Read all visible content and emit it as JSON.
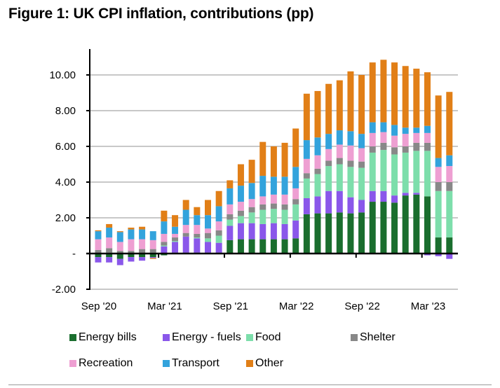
{
  "chart_data": {
    "type": "bar",
    "stacked": true,
    "title": "Figure 1: UK CPI inflation, contributions (pp)",
    "xlabel": "",
    "ylabel": "",
    "ylim": [
      -2,
      10
    ],
    "yticks": [
      {
        "value": 10,
        "label": "10.00"
      },
      {
        "value": 8,
        "label": "8.00"
      },
      {
        "value": 6,
        "label": "6.00"
      },
      {
        "value": 4,
        "label": "4.00"
      },
      {
        "value": 2,
        "label": "2.00"
      },
      {
        "value": 0,
        "label": "-"
      },
      {
        "value": -2,
        "label": "-2.00"
      }
    ],
    "grid": true,
    "legend_position": "bottom",
    "categories": [
      "Sep 2020",
      "Oct 2020",
      "Nov 2020",
      "Dec 2020",
      "Jan 2021",
      "Feb 2021",
      "Mar 2021",
      "Apr 2021",
      "May 2021",
      "Jun 2021",
      "Jul 2021",
      "Aug 2021",
      "Sep 2021",
      "Oct 2021",
      "Nov 2021",
      "Dec 2021",
      "Jan 2022",
      "Feb 2022",
      "Mar 2022",
      "Apr 2022",
      "May 2022",
      "Jun 2022",
      "Jul 2022",
      "Aug 2022",
      "Sep 2022",
      "Oct 2022",
      "Nov 2022",
      "Dec 2022",
      "Jan 2023",
      "Feb 2023",
      "Mar 2023",
      "Apr 2023",
      "May 2023"
    ],
    "xtick_labels": [
      {
        "index": 0,
        "label": "Sep '20"
      },
      {
        "index": 6,
        "label": "Mar '21"
      },
      {
        "index": 12,
        "label": "Sep '21"
      },
      {
        "index": 18,
        "label": "Mar '22"
      },
      {
        "index": 24,
        "label": "Sep '22"
      },
      {
        "index": 30,
        "label": "Mar '23"
      }
    ],
    "series": [
      {
        "name": "Energy bills",
        "color": "#1a6e2e",
        "values": [
          -0.2,
          -0.2,
          -0.3,
          -0.2,
          -0.2,
          -0.2,
          -0.1,
          0.05,
          0.05,
          0.05,
          0.05,
          0.05,
          0.75,
          0.8,
          0.8,
          0.8,
          0.8,
          0.8,
          0.85,
          2.2,
          2.25,
          2.25,
          2.3,
          2.25,
          2.3,
          2.9,
          2.9,
          2.85,
          3.25,
          3.3,
          3.2,
          0.9,
          0.9
        ]
      },
      {
        "name": "Energy - fuels",
        "color": "#8a57ea",
        "values": [
          -0.3,
          -0.3,
          -0.35,
          -0.25,
          -0.2,
          -0.05,
          0.4,
          0.6,
          0.9,
          0.8,
          0.6,
          0.55,
          0.8,
          0.9,
          0.9,
          0.85,
          0.9,
          0.85,
          1.0,
          0.9,
          0.95,
          1.25,
          1.2,
          0.9,
          0.7,
          0.6,
          0.6,
          0.4,
          0.15,
          0.1,
          -0.1,
          -0.15,
          -0.3
        ]
      },
      {
        "name": "Food",
        "color": "#7ddeab",
        "values": [
          0.0,
          0.05,
          0.0,
          0.0,
          0.0,
          0.05,
          0.05,
          0.05,
          0.0,
          0.05,
          0.2,
          0.4,
          0.35,
          0.4,
          0.6,
          0.8,
          0.8,
          0.8,
          0.9,
          1.1,
          1.25,
          1.4,
          1.5,
          1.7,
          1.8,
          2.15,
          2.3,
          2.3,
          2.25,
          2.35,
          2.55,
          2.6,
          2.6
        ]
      },
      {
        "name": "Shelter",
        "color": "#888888",
        "values": [
          0.2,
          0.25,
          0.15,
          0.15,
          0.25,
          0.2,
          0.2,
          0.2,
          0.2,
          0.2,
          0.3,
          0.3,
          0.3,
          0.3,
          0.3,
          0.3,
          0.3,
          0.3,
          0.3,
          0.3,
          0.3,
          0.3,
          0.35,
          0.35,
          0.35,
          0.35,
          0.4,
          0.4,
          0.35,
          0.45,
          0.45,
          0.5,
          0.5
        ]
      },
      {
        "name": "Recreation",
        "color": "#ee9fd2",
        "values": [
          0.6,
          0.6,
          0.5,
          0.65,
          0.55,
          0.5,
          0.45,
          0.2,
          0.45,
          0.5,
          0.25,
          0.5,
          0.55,
          0.5,
          0.45,
          0.45,
          0.5,
          0.55,
          0.6,
          0.8,
          0.75,
          0.65,
          0.75,
          0.85,
          0.75,
          0.75,
          0.6,
          0.65,
          0.7,
          0.55,
          0.55,
          0.85,
          0.9
        ]
      },
      {
        "name": "Transport",
        "color": "#33a3dc",
        "values": [
          0.45,
          0.55,
          0.55,
          0.55,
          0.55,
          0.5,
          0.7,
          0.4,
          0.85,
          0.55,
          0.75,
          0.85,
          0.9,
          0.9,
          0.9,
          1.15,
          1.0,
          1.0,
          1.2,
          1.05,
          1.0,
          0.85,
          0.8,
          0.8,
          0.8,
          0.6,
          0.55,
          0.6,
          0.35,
          0.3,
          0.4,
          0.5,
          0.6
        ]
      },
      {
        "name": "Other",
        "color": "#e17f17",
        "values": [
          0.05,
          0.2,
          0.05,
          0.1,
          0.15,
          -0.05,
          0.6,
          0.65,
          0.55,
          0.45,
          0.85,
          0.85,
          0.45,
          1.2,
          1.3,
          1.9,
          1.7,
          1.9,
          2.15,
          2.6,
          2.6,
          2.8,
          2.8,
          3.35,
          3.3,
          3.35,
          3.5,
          3.5,
          3.45,
          3.3,
          3.0,
          3.5,
          3.55
        ]
      }
    ]
  },
  "legend": {
    "items": [
      {
        "label": "Energy bills",
        "color": "#1a6e2e"
      },
      {
        "label": "Energy - fuels",
        "color": "#8a57ea"
      },
      {
        "label": "Food",
        "color": "#7ddeab"
      },
      {
        "label": "Shelter",
        "color": "#888888"
      },
      {
        "label": "Recreation",
        "color": "#ee9fd2"
      },
      {
        "label": "Transport",
        "color": "#33a3dc"
      },
      {
        "label": "Other",
        "color": "#e17f17"
      }
    ]
  }
}
